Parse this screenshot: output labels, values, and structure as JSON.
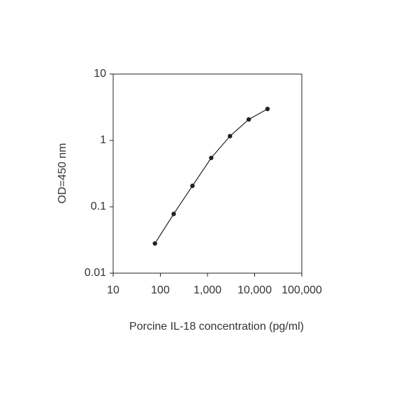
{
  "chart_data": {
    "type": "line",
    "xlabel": "Porcine IL-18 concentration (pg/ml)",
    "ylabel": "OD=450 nm",
    "x": [
      76.8,
      192,
      480,
      1200,
      3000,
      7500,
      18750
    ],
    "series": [
      {
        "color": "#222222",
        "values": [
          0.028,
          0.078,
          0.207,
          0.545,
          1.16,
          2.07,
          2.98
        ]
      }
    ],
    "xlog": true,
    "ylog": true,
    "xlim": [
      10,
      100000
    ],
    "ylim": [
      0.01,
      10
    ],
    "xticks": [
      10,
      100,
      {
        "value": 1000,
        "label": "1,000"
      },
      {
        "value": 10000,
        "label": "10,000"
      },
      {
        "value": 100000,
        "label": "100,000"
      }
    ],
    "yticks": [
      0.01,
      0.1,
      1,
      10
    ],
    "grid": false
  }
}
